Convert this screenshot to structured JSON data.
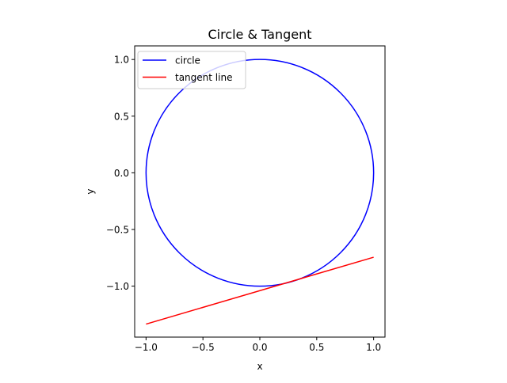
{
  "chart_data": {
    "type": "line",
    "title": "Circle & Tangent",
    "xlabel": "x",
    "ylabel": "y",
    "xlim": [
      -1.1,
      1.1
    ],
    "ylim": [
      -1.45,
      1.12
    ],
    "grid": false,
    "aspect": "equal",
    "legend_position": "upper-left",
    "x_ticks": [
      -1.0,
      -0.5,
      0.0,
      0.5,
      1.0
    ],
    "x_tick_labels": [
      "−1.0",
      "−0.5",
      "0.0",
      "0.5",
      "1.0"
    ],
    "y_ticks": [
      1.0,
      0.5,
      0.0,
      -0.5,
      -1.0
    ],
    "y_tick_labels": [
      "1.0",
      "0.5",
      "0.0",
      "−0.5",
      "−1.0"
    ],
    "series": [
      {
        "name": "circle",
        "kind": "circle",
        "center": [
          0,
          0
        ],
        "radius": 1,
        "color": "#0000ff"
      },
      {
        "name": "tangent line",
        "kind": "segment",
        "x": [
          -1.0,
          1.0
        ],
        "y": [
          -1.335,
          -0.745
        ],
        "color": "#ff0000"
      }
    ]
  }
}
